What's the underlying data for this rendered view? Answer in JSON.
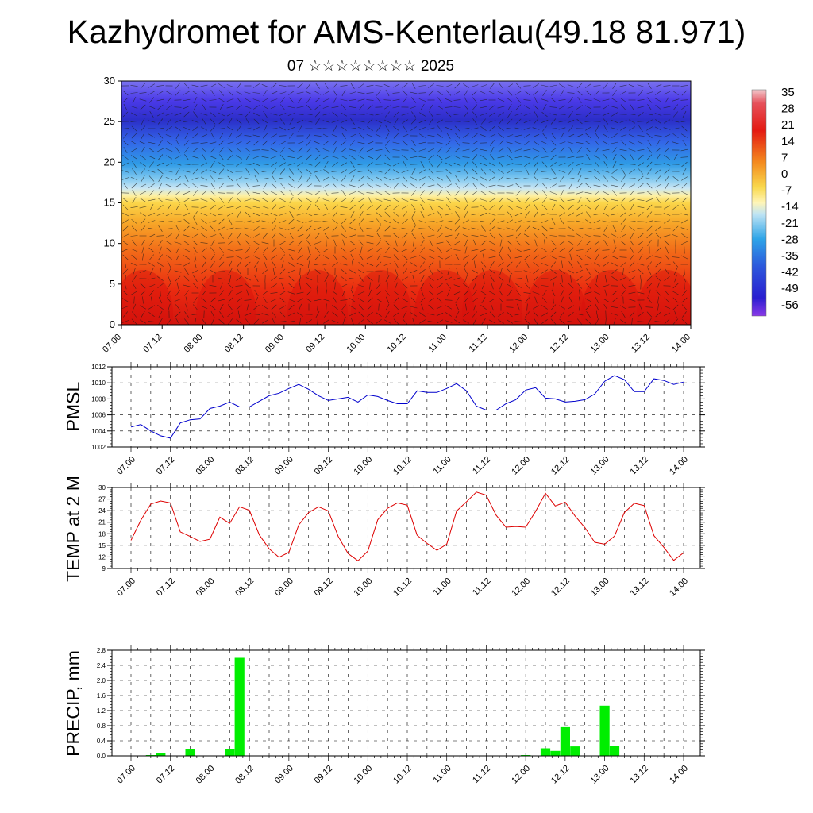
{
  "title": "Kazhydromet for AMS-Kenterlau(49.18 81.971)",
  "subtitle": "07 ☆☆☆☆☆☆☆☆ 2025",
  "chart_data": [
    {
      "type": "heatmap",
      "xlabel": "",
      "ylabel": "",
      "ylim": [
        0,
        30
      ],
      "y_ticks": [
        "0",
        "5",
        "10",
        "15",
        "20",
        "25",
        "30"
      ],
      "x_ticks": [
        "07.00",
        "07.12",
        "08.00",
        "08.12",
        "09.00",
        "09.12",
        "10.00",
        "10.12",
        "11.00",
        "11.12",
        "12.00",
        "12.12",
        "13.00",
        "13.12",
        "14.00"
      ],
      "colorbar_labels": [
        "35",
        "28",
        "21",
        "14",
        "7",
        "0",
        "-7",
        "-14",
        "-21",
        "-28",
        "-35",
        "-42",
        "-49",
        "-56"
      ],
      "colors": {
        "warm": "#e8190f",
        "mid": "#f8d040",
        "cold": "#3226e0"
      }
    },
    {
      "type": "line",
      "ylabel": "PMSL",
      "ylim": [
        1002,
        1012
      ],
      "y_ticks": [
        "1002",
        "1004",
        "1006",
        "1008",
        "1010",
        "1012"
      ],
      "x_ticks": [
        "07.00",
        "07.12",
        "08.00",
        "08.12",
        "09.00",
        "09.12",
        "10.00",
        "10.12",
        "11.00",
        "11.12",
        "12.00",
        "12.12",
        "13.00",
        "13.12",
        "14.00"
      ],
      "color": "#0000cc",
      "values": [
        1004.5,
        1004.8,
        1004.0,
        1003.4,
        1003.1,
        1005.0,
        1005.4,
        1005.5,
        1006.8,
        1007.1,
        1007.6,
        1007.0,
        1007.0,
        1007.7,
        1008.4,
        1008.7,
        1009.3,
        1009.8,
        1009.2,
        1008.4,
        1007.8,
        1008.0,
        1008.2,
        1007.6,
        1008.5,
        1008.3,
        1007.8,
        1007.4,
        1007.4,
        1009.0,
        1008.8,
        1008.8,
        1009.3,
        1009.9,
        1009.0,
        1007.1,
        1006.6,
        1006.6,
        1007.4,
        1007.9,
        1009.1,
        1009.4,
        1008.1,
        1008.0,
        1007.6,
        1007.7,
        1007.9,
        1008.6,
        1010.2,
        1010.9,
        1010.4,
        1008.9,
        1008.9,
        1010.5,
        1010.3,
        1009.8,
        1010.1
      ]
    },
    {
      "type": "line",
      "ylabel": "TEMP at 2 M",
      "ylim": [
        9,
        30
      ],
      "y_ticks": [
        "9",
        "12",
        "15",
        "18",
        "21",
        "24",
        "27",
        "30"
      ],
      "x_ticks": [
        "07.00",
        "07.12",
        "08.00",
        "08.12",
        "09.00",
        "09.12",
        "10.00",
        "10.12",
        "11.00",
        "11.12",
        "12.00",
        "12.12",
        "13.00",
        "13.12",
        "14.00"
      ],
      "color": "#dd0000",
      "values": [
        16.3,
        21.5,
        25.7,
        26.5,
        26.0,
        18.5,
        17.3,
        16.0,
        16.6,
        22.3,
        20.7,
        25.0,
        24.1,
        17.7,
        14.1,
        11.9,
        13.2,
        20.3,
        23.5,
        25.0,
        23.9,
        17.3,
        12.9,
        11.0,
        13.5,
        21.6,
        24.6,
        26.0,
        25.4,
        17.6,
        15.5,
        13.7,
        15.3,
        23.9,
        26.3,
        28.8,
        28.0,
        22.8,
        19.7,
        19.9,
        19.7,
        23.8,
        28.5,
        25.2,
        26.2,
        22.6,
        19.6,
        15.8,
        15.3,
        17.4,
        23.5,
        25.9,
        25.3,
        17.5,
        14.5,
        11.1,
        13.1
      ]
    },
    {
      "type": "bar",
      "ylabel": "PRECIP, mm",
      "ylim": [
        0,
        2.8
      ],
      "y_ticks": [
        "0.0",
        "0.4",
        "0.8",
        "1.2",
        "1.6",
        "2.0",
        "2.4",
        "2.8"
      ],
      "x_ticks": [
        "07.00",
        "07.12",
        "08.00",
        "08.12",
        "09.00",
        "09.12",
        "10.00",
        "10.12",
        "11.00",
        "11.12",
        "12.00",
        "12.12",
        "13.00",
        "13.12",
        "14.00"
      ],
      "color": "#00ee00",
      "values": [
        0,
        0,
        0.02,
        0.07,
        0,
        0,
        0.17,
        0,
        0,
        0,
        0.18,
        2.6,
        0,
        0,
        0,
        0,
        0,
        0,
        0,
        0,
        0,
        0,
        0,
        0,
        0,
        0,
        0,
        0,
        0,
        0,
        0,
        0,
        0,
        0,
        0,
        0,
        0,
        0,
        0,
        0,
        0.02,
        0,
        0.2,
        0.13,
        0.76,
        0.25,
        0,
        0,
        1.33,
        0.27,
        0,
        0,
        0,
        0,
        0,
        0,
        0
      ]
    }
  ]
}
